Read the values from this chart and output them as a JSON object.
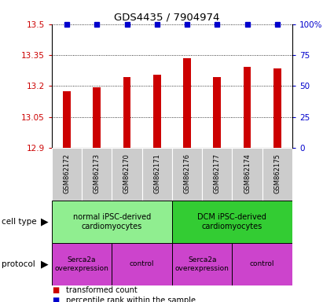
{
  "title": "GDS4435 / 7904974",
  "samples": [
    "GSM862172",
    "GSM862173",
    "GSM862170",
    "GSM862171",
    "GSM862176",
    "GSM862177",
    "GSM862174",
    "GSM862175"
  ],
  "bar_values": [
    13.175,
    13.195,
    13.245,
    13.255,
    13.335,
    13.245,
    13.295,
    13.285
  ],
  "percentile_values": [
    100,
    100,
    100,
    100,
    100,
    100,
    100,
    100
  ],
  "bar_color": "#cc0000",
  "percentile_color": "#0000cc",
  "ylim_left": [
    12.9,
    13.5
  ],
  "ylim_right": [
    0,
    100
  ],
  "yticks_left": [
    12.9,
    13.05,
    13.2,
    13.35,
    13.5
  ],
  "yticks_right": [
    0,
    25,
    50,
    75,
    100
  ],
  "ytick_labels_left": [
    "12.9",
    "13.05",
    "13.2",
    "13.35",
    "13.5"
  ],
  "ytick_labels_right": [
    "0",
    "25",
    "50",
    "75",
    "100%"
  ],
  "cell_type_groups": [
    {
      "label": "normal iPSC-derived\ncardiomyocytes",
      "start": 0,
      "end": 4,
      "color": "#90ee90"
    },
    {
      "label": "DCM iPSC-derived\ncardiomyocytes",
      "start": 4,
      "end": 8,
      "color": "#33cc33"
    }
  ],
  "protocol_groups": [
    {
      "label": "Serca2a\noverexpression",
      "start": 0,
      "end": 2,
      "color": "#cc44cc"
    },
    {
      "label": "control",
      "start": 2,
      "end": 4,
      "color": "#cc44cc"
    },
    {
      "label": "Serca2a\noverexpression",
      "start": 4,
      "end": 6,
      "color": "#cc44cc"
    },
    {
      "label": "control",
      "start": 6,
      "end": 8,
      "color": "#cc44cc"
    }
  ],
  "sample_bg_color": "#cccccc",
  "legend_items": [
    {
      "label": "transformed count",
      "color": "#cc0000"
    },
    {
      "label": "percentile rank within the sample",
      "color": "#0000cc"
    }
  ],
  "fig_width": 4.25,
  "fig_height": 3.84,
  "dpi": 100
}
